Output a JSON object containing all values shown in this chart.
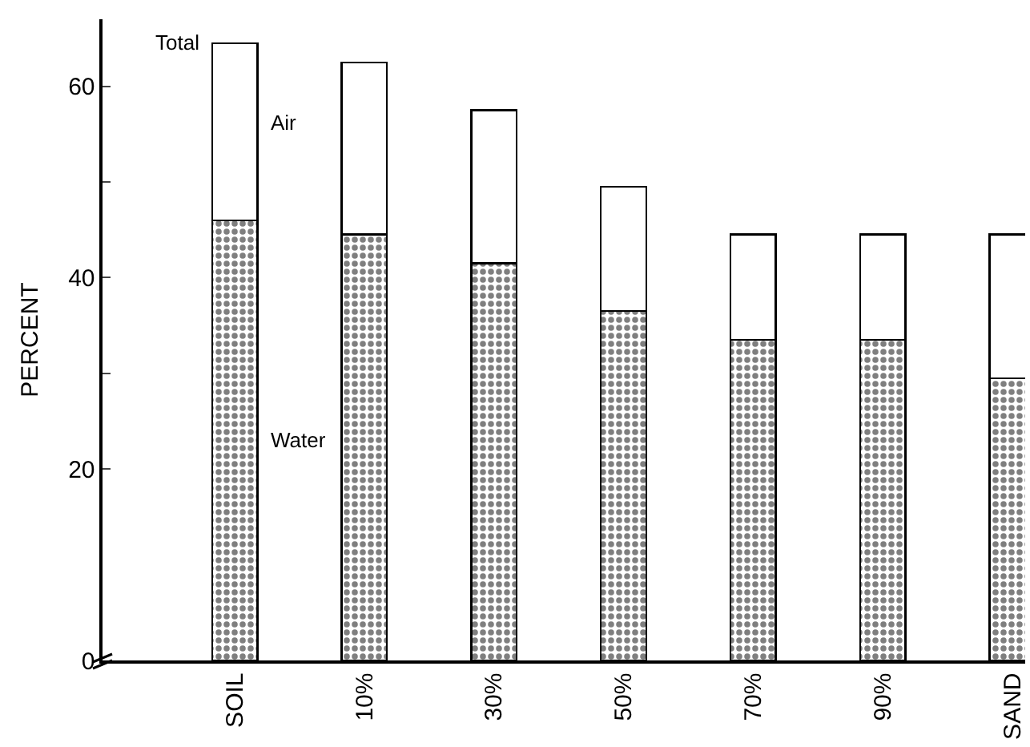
{
  "chart_data": {
    "type": "bar",
    "stacked": true,
    "ylabel": "PERCENT",
    "categories": [
      "SOIL",
      "10%",
      "30%",
      "50%",
      "70%",
      "90%",
      "SAND"
    ],
    "series": [
      {
        "name": "Water",
        "color": "#000000",
        "values": [
          46,
          44.5,
          41.5,
          36.5,
          33.5,
          33.5,
          29.5
        ]
      },
      {
        "name": "Air",
        "color": "#ffffff",
        "values": [
          18.5,
          18,
          16,
          13,
          11,
          11,
          15
        ]
      }
    ],
    "annotations": [
      {
        "text": "Total",
        "x": "SOIL",
        "y": 64.5
      }
    ],
    "ylim": [
      0,
      67
    ],
    "yticks": [
      0,
      20,
      {
        "value": 30,
        "label": null
      },
      40,
      {
        "value": 50,
        "label": null
      },
      60
    ],
    "grid": false,
    "legend": false
  }
}
